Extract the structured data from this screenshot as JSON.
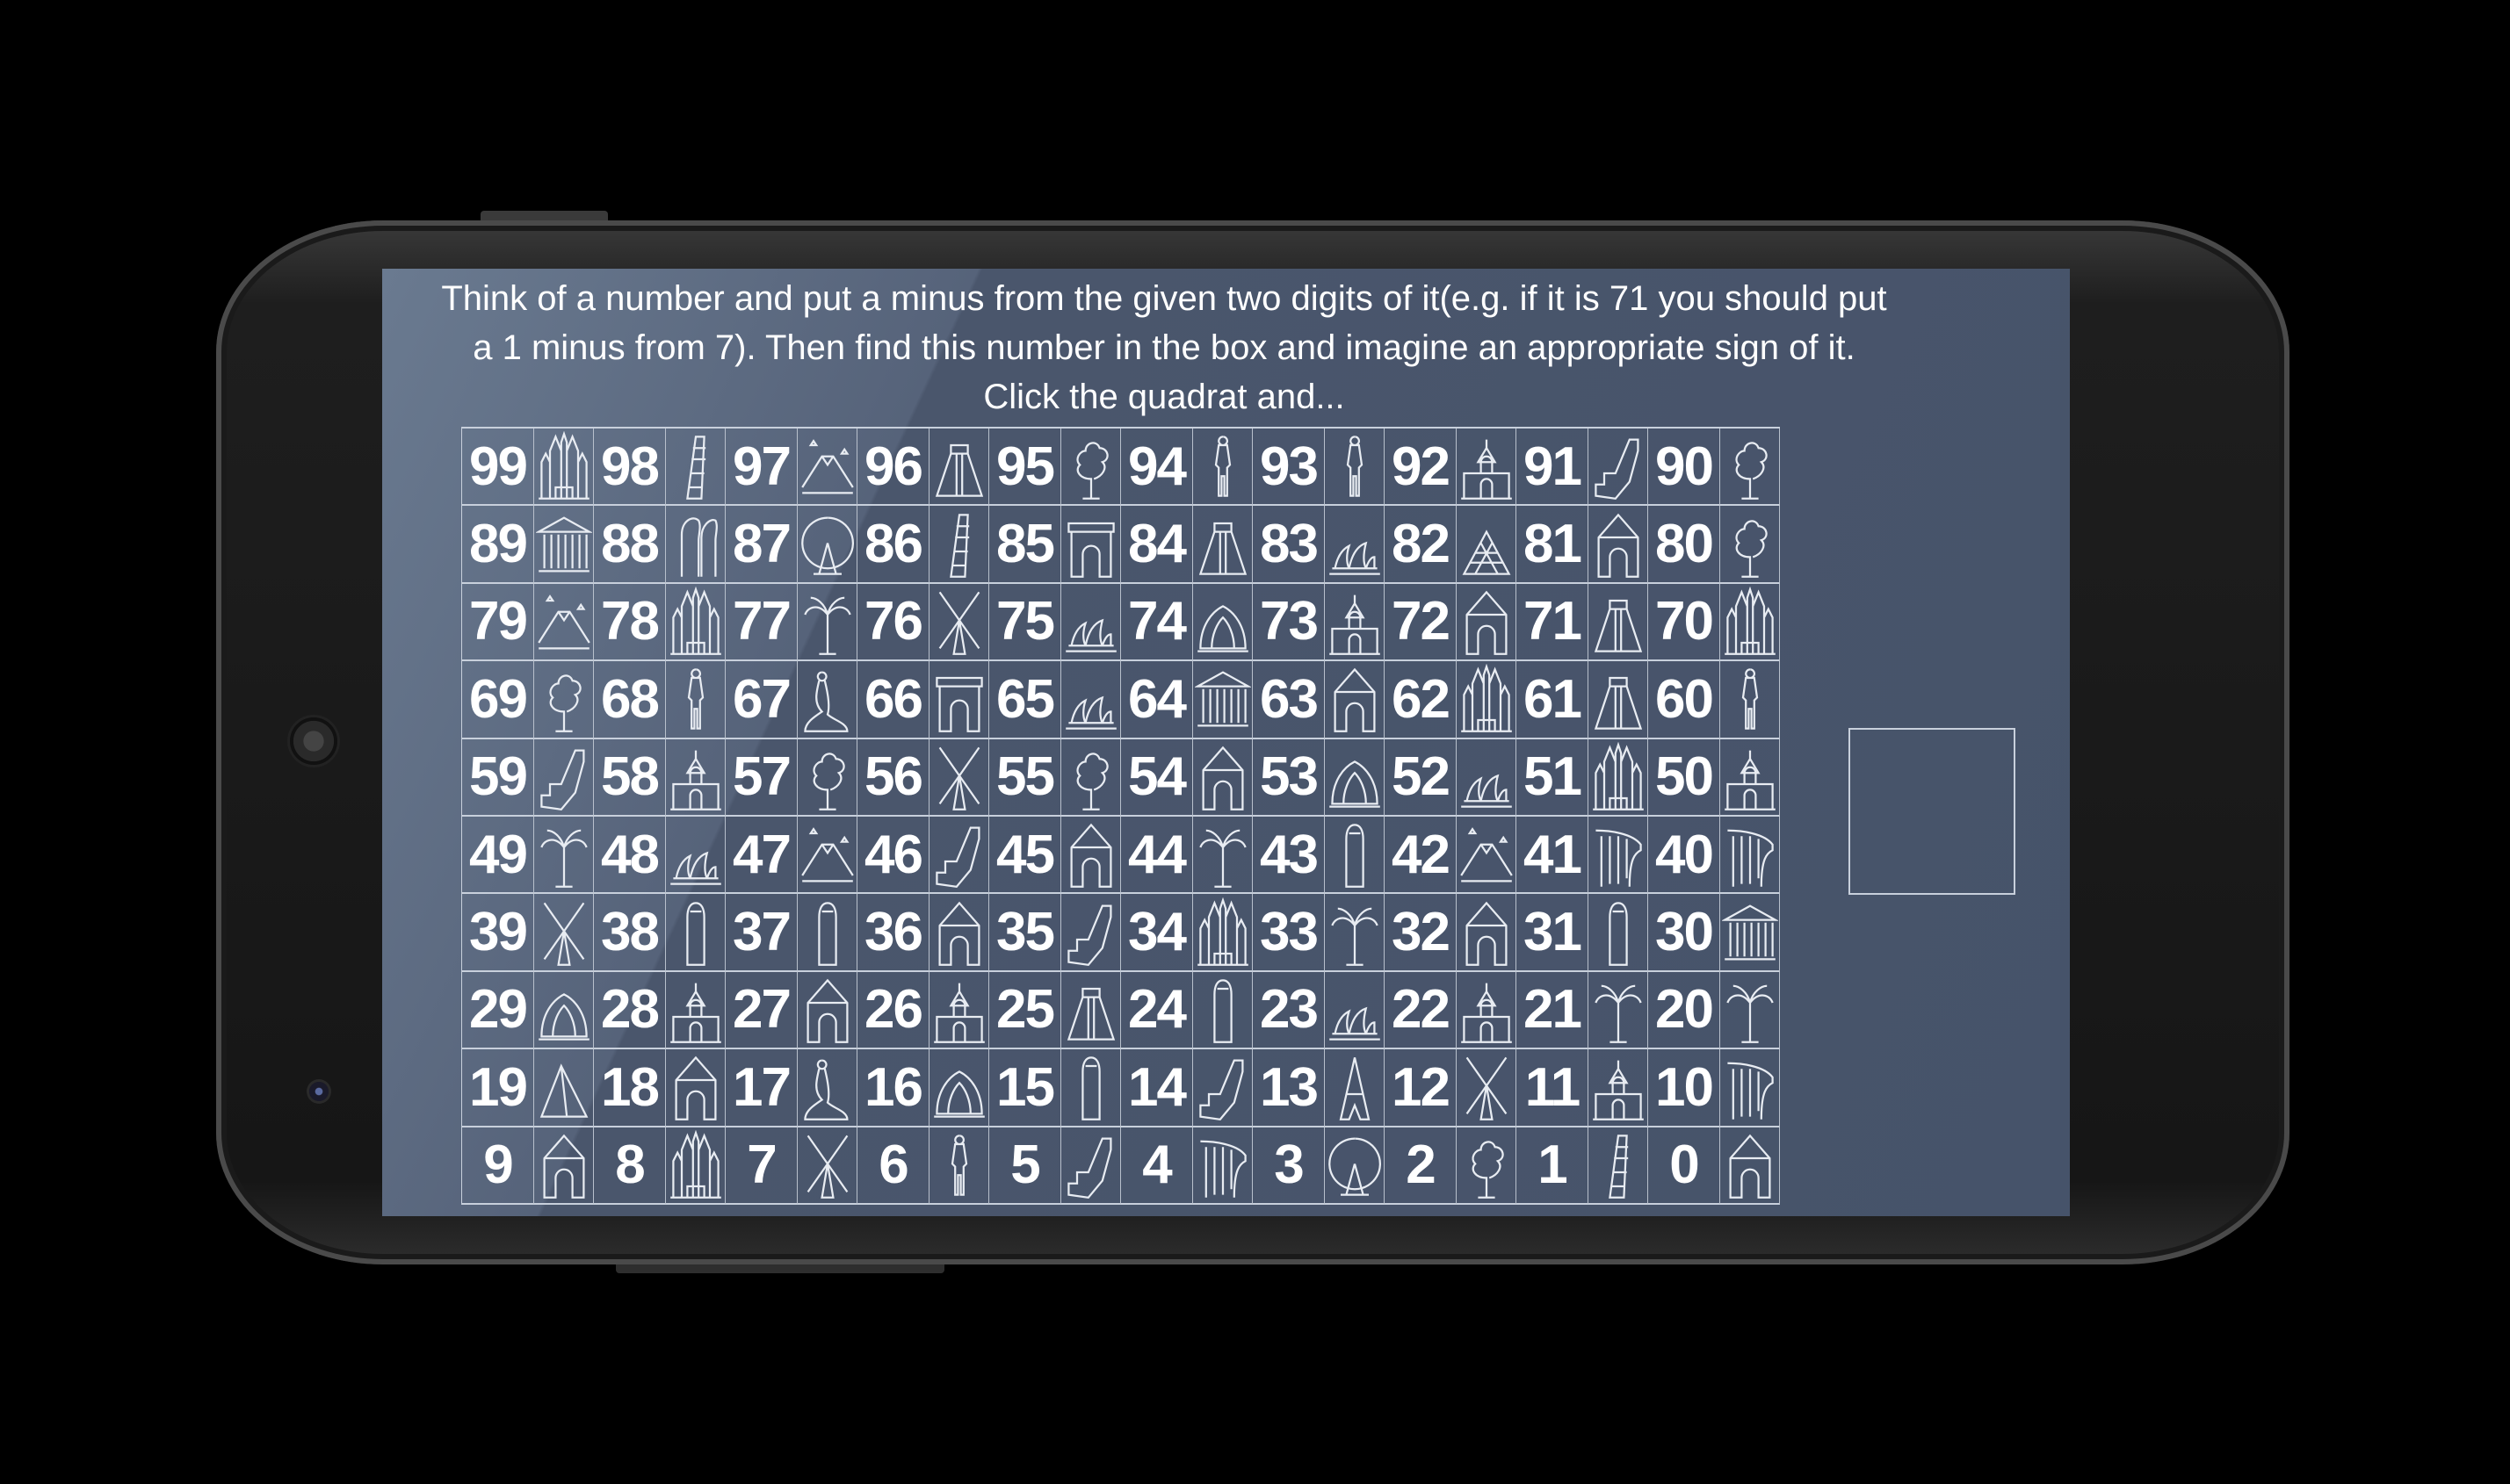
{
  "instruction_lines": [
    "Think of a number and put a minus from the given two digits of it(e.g. if it is 71 you should put",
    "a 1 minus from 7). Then find this number in the box and imagine an appropriate sign of it.",
    "Click the quadrat and..."
  ],
  "colors": {
    "screen_bg": "#4a566c",
    "text": "#ffffff",
    "grid_lines": "#c8d0dc"
  },
  "grid": {
    "rows": [
      [
        [
          "99",
          "cathedral"
        ],
        [
          "98",
          "pisa-tower"
        ],
        [
          "97",
          "mount-fuji"
        ],
        [
          "96",
          "chichen-itza"
        ],
        [
          "95",
          "tree"
        ],
        [
          "94",
          "david-statue"
        ],
        [
          "93",
          "david-statue"
        ],
        [
          "92",
          "taj-mahal"
        ],
        [
          "91",
          "great-wall"
        ],
        [
          "90",
          "tree"
        ]
      ],
      [
        [
          "89",
          "parthenon"
        ],
        [
          "88",
          "moai"
        ],
        [
          "87",
          "london-eye"
        ],
        [
          "86",
          "pisa-tower"
        ],
        [
          "85",
          "triumphal-arch"
        ],
        [
          "84",
          "chichen-itza"
        ],
        [
          "83",
          "sydney-opera"
        ],
        [
          "82",
          "louvre-pyramid"
        ],
        [
          "81",
          "domed-gate"
        ],
        [
          "80",
          "tree"
        ]
      ],
      [
        [
          "79",
          "mount-fuji"
        ],
        [
          "78",
          "cathedral"
        ],
        [
          "77",
          "palm-trees"
        ],
        [
          "76",
          "windmill"
        ],
        [
          "75",
          "sydney-opera"
        ],
        [
          "74",
          "lotus-temple"
        ],
        [
          "73",
          "taj-mahal"
        ],
        [
          "72",
          "domed-gate"
        ],
        [
          "71",
          "chichen-itza"
        ],
        [
          "70",
          "cathedral"
        ]
      ],
      [
        [
          "69",
          "tree"
        ],
        [
          "68",
          "david-statue"
        ],
        [
          "67",
          "little-mermaid"
        ],
        [
          "66",
          "triumphal-arch"
        ],
        [
          "65",
          "sydney-opera"
        ],
        [
          "64",
          "parthenon"
        ],
        [
          "63",
          "domed-gate"
        ],
        [
          "62",
          "cathedral"
        ],
        [
          "61",
          "chichen-itza"
        ],
        [
          "60",
          "david-statue"
        ]
      ],
      [
        [
          "59",
          "great-wall"
        ],
        [
          "58",
          "taj-mahal"
        ],
        [
          "57",
          "tree"
        ],
        [
          "56",
          "windmill"
        ],
        [
          "55",
          "tree"
        ],
        [
          "54",
          "domed-gate"
        ],
        [
          "53",
          "lotus-temple"
        ],
        [
          "52",
          "sydney-opera"
        ],
        [
          "51",
          "cathedral"
        ],
        [
          "50",
          "taj-mahal"
        ]
      ],
      [
        [
          "49",
          "palm-trees"
        ],
        [
          "48",
          "sydney-opera"
        ],
        [
          "47",
          "mount-fuji"
        ],
        [
          "46",
          "great-wall"
        ],
        [
          "45",
          "domed-gate"
        ],
        [
          "44",
          "palm-trees"
        ],
        [
          "43",
          "robed-figure"
        ],
        [
          "42",
          "mount-fuji"
        ],
        [
          "41",
          "waterfall"
        ],
        [
          "40",
          "waterfall"
        ]
      ],
      [
        [
          "39",
          "windmill"
        ],
        [
          "38",
          "robed-figure"
        ],
        [
          "37",
          "robed-figure"
        ],
        [
          "36",
          "domed-gate"
        ],
        [
          "35",
          "great-wall"
        ],
        [
          "34",
          "cathedral"
        ],
        [
          "33",
          "palm-trees"
        ],
        [
          "32",
          "domed-gate"
        ],
        [
          "31",
          "robed-figure"
        ],
        [
          "30",
          "parthenon"
        ]
      ],
      [
        [
          "29",
          "lotus-temple"
        ],
        [
          "28",
          "taj-mahal"
        ],
        [
          "27",
          "domed-gate"
        ],
        [
          "26",
          "taj-mahal"
        ],
        [
          "25",
          "chichen-itza"
        ],
        [
          "24",
          "robed-figure"
        ],
        [
          "23",
          "sydney-opera"
        ],
        [
          "22",
          "taj-mahal"
        ],
        [
          "21",
          "palm-trees"
        ],
        [
          "20",
          "palm-trees"
        ]
      ],
      [
        [
          "19",
          "pyramid"
        ],
        [
          "18",
          "domed-gate"
        ],
        [
          "17",
          "little-mermaid"
        ],
        [
          "16",
          "lotus-temple"
        ],
        [
          "15",
          "robed-figure"
        ],
        [
          "14",
          "great-wall"
        ],
        [
          "13",
          "eiffel-tower"
        ],
        [
          "12",
          "windmill"
        ],
        [
          "11",
          "taj-mahal"
        ],
        [
          "10",
          "waterfall"
        ]
      ],
      [
        [
          "9",
          "domed-gate"
        ],
        [
          "8",
          "cathedral"
        ],
        [
          "7",
          "windmill"
        ],
        [
          "6",
          "david-statue"
        ],
        [
          "5",
          "great-wall"
        ],
        [
          "4",
          "waterfall"
        ],
        [
          "3",
          "london-eye"
        ],
        [
          "2",
          "tree"
        ],
        [
          "1",
          "pisa-tower"
        ],
        [
          "0",
          "domed-gate"
        ]
      ]
    ]
  }
}
